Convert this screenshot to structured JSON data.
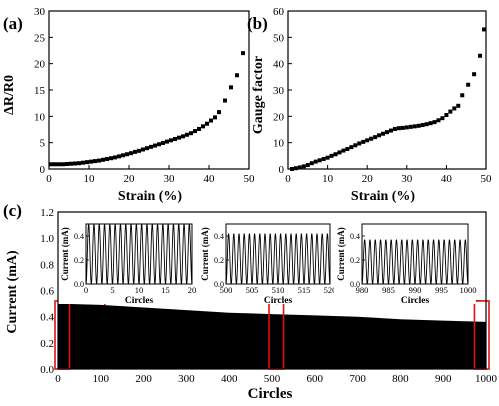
{
  "chart_data": [
    {
      "panel": "(a)",
      "type": "scatter",
      "xlabel": "Strain (%)",
      "ylabel": "ΔR/R0",
      "xlim": [
        0,
        50
      ],
      "ylim": [
        0,
        30
      ],
      "xticks": [
        "0",
        "10",
        "20",
        "30",
        "40",
        "50"
      ],
      "yticks": [
        "0",
        "5",
        "10",
        "15",
        "20",
        "25",
        "30"
      ],
      "series": [
        {
          "x": [
            0.5,
            1.5,
            2.5,
            3.5,
            4.5,
            5.5,
            6.5,
            7.5,
            8.5,
            9.5,
            10.5,
            11.5,
            12.5,
            13.5,
            14.5,
            15.5,
            16.5,
            17.5,
            18.5,
            19.5,
            20.5,
            21.5,
            22.5,
            23.5,
            24.5,
            25.5,
            26.5,
            27.5,
            28.5,
            29.5,
            30.5,
            31.5,
            32.5,
            33.5,
            34.5,
            35.5,
            36.5,
            37.5,
            38.5,
            39.5,
            40.5,
            41.5,
            42.5,
            44.0,
            45.5,
            47.0,
            48.5
          ],
          "y": [
            0.9,
            0.9,
            0.9,
            0.9,
            0.95,
            1.0,
            1.05,
            1.1,
            1.2,
            1.3,
            1.4,
            1.5,
            1.6,
            1.75,
            1.9,
            2.05,
            2.2,
            2.4,
            2.6,
            2.8,
            3.0,
            3.25,
            3.45,
            3.7,
            3.95,
            4.2,
            4.45,
            4.7,
            4.95,
            5.2,
            5.45,
            5.7,
            5.95,
            6.2,
            6.5,
            6.8,
            7.2,
            7.6,
            8.1,
            8.6,
            9.2,
            9.8,
            10.8,
            13.0,
            15.5,
            17.8,
            22.0
          ]
        }
      ]
    },
    {
      "panel": "(b)",
      "type": "scatter",
      "xlabel": "Strain (%)",
      "ylabel": "Gauge factor",
      "xlim": [
        0,
        50
      ],
      "ylim": [
        0,
        60
      ],
      "xticks": [
        "0",
        "10",
        "20",
        "30",
        "40",
        "50"
      ],
      "yticks": [
        "0",
        "10",
        "20",
        "30",
        "40",
        "50",
        "60"
      ],
      "series": [
        {
          "x": [
            1.0,
            2.0,
            3.0,
            4.0,
            5.0,
            6.0,
            7.0,
            8.0,
            9.0,
            10.0,
            11.0,
            12.0,
            13.0,
            14.0,
            15.0,
            16.0,
            17.0,
            18.0,
            19.0,
            20.0,
            21.0,
            22.0,
            23.0,
            24.0,
            25.0,
            26.0,
            27.0,
            28.0,
            29.0,
            30.0,
            31.0,
            32.0,
            33.0,
            34.0,
            35.0,
            36.0,
            37.0,
            38.0,
            39.0,
            40.0,
            41.0,
            42.0,
            43.0,
            44.0,
            45.5,
            47.0,
            48.5,
            49.5
          ],
          "y": [
            0.0,
            0.3,
            0.6,
            1.0,
            1.5,
            2.2,
            2.8,
            3.3,
            3.8,
            4.3,
            5.0,
            5.6,
            6.3,
            7.0,
            7.6,
            8.3,
            9.0,
            9.7,
            10.3,
            10.9,
            11.5,
            12.1,
            12.8,
            13.4,
            14.0,
            14.6,
            15.2,
            15.5,
            15.6,
            15.8,
            16.0,
            16.2,
            16.4,
            16.7,
            17.0,
            17.4,
            17.8,
            18.5,
            19.3,
            20.5,
            21.8,
            23.0,
            24.0,
            28.0,
            32.0,
            36.0,
            43.0,
            53.0
          ]
        }
      ]
    },
    {
      "panel": "(c)",
      "type": "line",
      "xlabel": "Circles",
      "ylabel": "Current (mA)",
      "xlim": [
        0,
        1000
      ],
      "ylim": [
        0,
        1.2
      ],
      "xticks": [
        "0",
        "100",
        "200",
        "300",
        "400",
        "500",
        "600",
        "700",
        "800",
        "900",
        "1000"
      ],
      "yticks": [
        "0.0",
        "0.2",
        "0.4",
        "0.6",
        "0.8",
        "1.0",
        "1.2"
      ],
      "envelope_x": [
        0,
        100,
        200,
        300,
        400,
        500,
        600,
        700,
        800,
        900,
        1000
      ],
      "envelope_upper": [
        0.5,
        0.49,
        0.47,
        0.45,
        0.43,
        0.42,
        0.41,
        0.4,
        0.38,
        0.37,
        0.36
      ],
      "envelope_lower": [
        0.0,
        0.0,
        0.0,
        0.0,
        0.0,
        0.0,
        0.0,
        0.0,
        0.0,
        0.0,
        0.0
      ],
      "highlight_ranges": [
        [
          0,
          20
        ],
        [
          500,
          520
        ],
        [
          980,
          1000
        ]
      ],
      "insets": [
        {
          "ylabel": "Current (mA)",
          "xlabel": "Circles",
          "xlim": [
            0,
            20
          ],
          "xticks": [
            "0",
            "5",
            "10",
            "15",
            "20"
          ],
          "ylim": [
            0,
            0.5
          ],
          "yticks": [
            "0.0",
            "0.2",
            "0.4"
          ],
          "cycles": 20,
          "amplitude": 0.5
        },
        {
          "ylabel": "Current (mA)",
          "xlabel": "Circles",
          "xlim": [
            500,
            520
          ],
          "xticks": [
            "500",
            "505",
            "510",
            "515",
            "520"
          ],
          "ylim": [
            0,
            0.5
          ],
          "yticks": [
            "0.0",
            "0.2",
            "0.4"
          ],
          "cycles": 20,
          "amplitude": 0.42
        },
        {
          "ylabel": "Current (mA)",
          "xlabel": "Circles",
          "xlim": [
            980,
            1000
          ],
          "xticks": [
            "980",
            "985",
            "990",
            "995",
            "1000"
          ],
          "ylim": [
            0,
            0.5
          ],
          "yticks": [
            "0.0",
            "0.2",
            "0.4"
          ],
          "cycles": 20,
          "amplitude": 0.37
        }
      ]
    }
  ]
}
